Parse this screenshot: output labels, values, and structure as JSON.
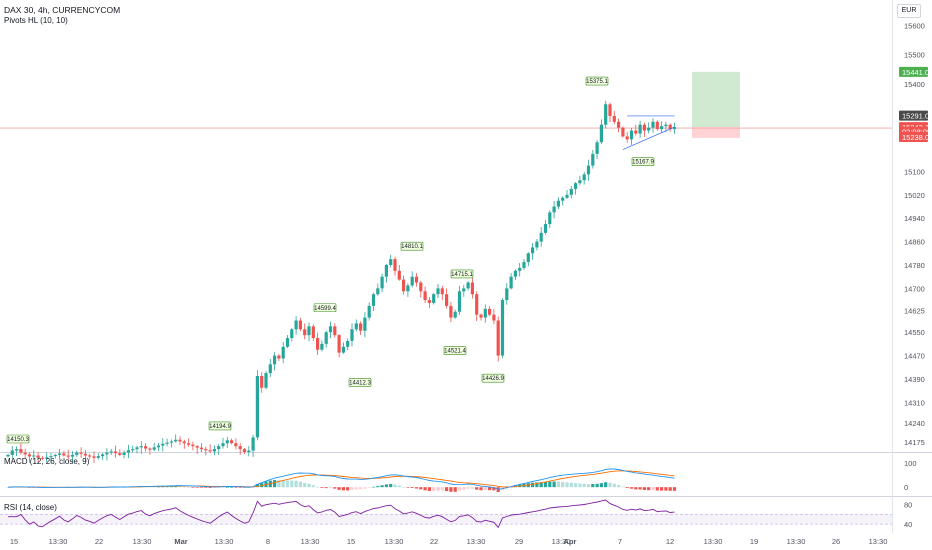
{
  "title": "DAX 30, 4h, CURRENCYCOM",
  "indicator": "Pivots HL (10, 10)",
  "currency": "EUR",
  "colors": {
    "up": "#26a69a",
    "down": "#ef5350",
    "macd": "#2196f3",
    "signal": "#ff6d00",
    "rsi": "#7e1fa1",
    "profit": "#c8e6c9",
    "loss": "#ffcdd2"
  },
  "chart_data": [
    {
      "type": "candlestick",
      "title": "DAX 30, 4h, CURRENCYCOM",
      "ylim": [
        14140,
        15680
      ],
      "y_ticks": [
        15600,
        15500,
        15400,
        15100,
        15020,
        14940,
        14860,
        14780,
        14700,
        14625,
        14550,
        14470,
        14390,
        14310,
        14240,
        14175
      ],
      "x_ticks": [
        "15",
        "13:30",
        "22",
        "13:30",
        "Mar",
        "13:30",
        "8",
        "13:30",
        "15",
        "13:30",
        "22",
        "13:30",
        "29",
        "13:30",
        "Apr",
        "7",
        "12",
        "13:30",
        "19",
        "13:30",
        "26",
        "13:30"
      ],
      "price_tags": [
        {
          "label": "15441.0",
          "value": 15441,
          "color": "#4caf50"
        },
        {
          "label": "15291.0",
          "value": 15291,
          "color": "#4a4a4a"
        },
        {
          "label": "15243.7",
          "value": 15252,
          "color": "#ef5350"
        },
        {
          "label": "02:08:05",
          "value": 15236,
          "color": "#ef5350"
        },
        {
          "label": "15238.0",
          "value": 15218,
          "color": "#ef5350"
        }
      ],
      "pivots": [
        {
          "label": "14150.3",
          "value": 14150.3,
          "pos": "high"
        },
        {
          "label": "14194.9",
          "value": 14194.9,
          "pos": "high"
        },
        {
          "label": "14599.4",
          "value": 14599.4,
          "pos": "high"
        },
        {
          "label": "14412.3",
          "value": 14412.3,
          "pos": "low"
        },
        {
          "label": "14810.1",
          "value": 14810.1,
          "pos": "high"
        },
        {
          "label": "14715.1",
          "value": 14715.1,
          "pos": "high"
        },
        {
          "label": "14521.4",
          "value": 14521.4,
          "pos": "low"
        },
        {
          "label": "14426.9",
          "value": 14426.9,
          "pos": "low"
        },
        {
          "label": "15375.1",
          "value": 15375.1,
          "pos": "high"
        },
        {
          "label": "15167.9",
          "value": 15167.9,
          "pos": "low"
        }
      ],
      "position": {
        "entry": 15252,
        "target": 15441,
        "stop": 15215
      },
      "closes": [
        14130,
        14145,
        14150,
        14138,
        14132,
        14125,
        14128,
        14120,
        14118,
        14122,
        14126,
        14130,
        14135,
        14128,
        14124,
        14130,
        14138,
        14134,
        14128,
        14125,
        14120,
        14126,
        14132,
        14138,
        14142,
        14136,
        14130,
        14138,
        14146,
        14150,
        14156,
        14160,
        14152,
        14148,
        14156,
        14162,
        14168,
        14172,
        14176,
        14182,
        14176,
        14170,
        14165,
        14160,
        14155,
        14150,
        14146,
        14142,
        14150,
        14160,
        14170,
        14180,
        14170,
        14160,
        14150,
        14140,
        14145,
        14190,
        14400,
        14360,
        14410,
        14440,
        14470,
        14460,
        14500,
        14530,
        14560,
        14590,
        14560,
        14540,
        14570,
        14530,
        14490,
        14510,
        14550,
        14570,
        14540,
        14480,
        14500,
        14520,
        14560,
        14580,
        14555,
        14600,
        14640,
        14680,
        14700,
        14740,
        14780,
        14800,
        14760,
        14730,
        14690,
        14710,
        14740,
        14720,
        14690,
        14660,
        14650,
        14680,
        14700,
        14680,
        14640,
        14600,
        14620,
        14690,
        14700,
        14720,
        14680,
        14610,
        14600,
        14630,
        14610,
        14590,
        14470,
        14660,
        14700,
        14740,
        14760,
        14770,
        14790,
        14820,
        14840,
        14860,
        14890,
        14920,
        14960,
        14980,
        15000,
        15010,
        15020,
        15040,
        15060,
        15070,
        15090,
        15120,
        15160,
        15200,
        15260,
        15330,
        15290,
        15270,
        15250,
        15220,
        15210,
        15240,
        15230,
        15260,
        15240,
        15250,
        15270,
        15245,
        15255,
        15260,
        15245,
        15252
      ]
    },
    {
      "type": "line",
      "title": "MACD (12, 26, close, 9)",
      "y_ticks": [
        100,
        0
      ],
      "ylim": [
        -20,
        125
      ]
    },
    {
      "type": "line",
      "title": "RSI (14, close)",
      "y_ticks": [
        80,
        40
      ],
      "ylim": [
        22,
        95
      ],
      "band": [
        40,
        60
      ]
    }
  ]
}
